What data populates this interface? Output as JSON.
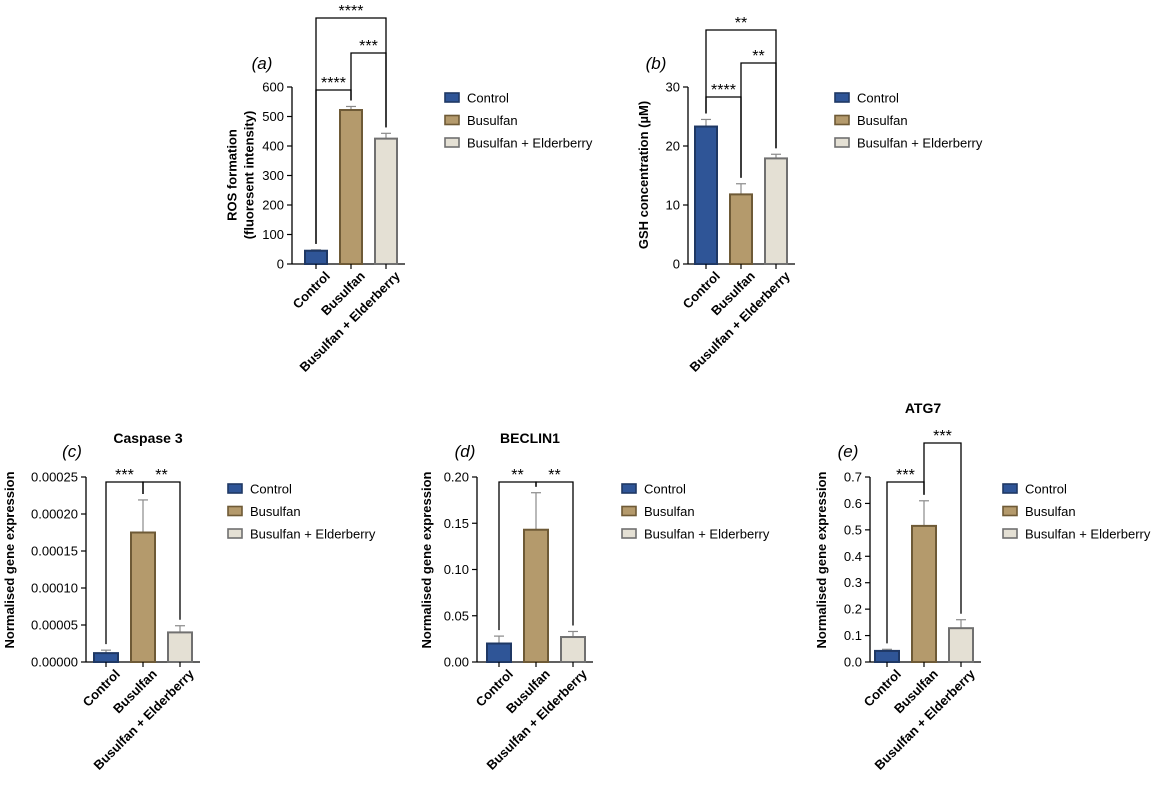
{
  "colors": {
    "control_fill": "#2F5597",
    "control_stroke": "#1F3864",
    "busulfan_fill": "#B49A6C",
    "busulfan_stroke": "#6E5A36",
    "elder_fill": "#E4E0D4",
    "elder_stroke": "#707070",
    "axis": "#000000",
    "error_bar": "#8a8a8a"
  },
  "legend": {
    "items": [
      {
        "label": "Control",
        "series": "control"
      },
      {
        "label": "Busulfan",
        "series": "busulfan"
      },
      {
        "label": "Busulfan + Elderberry",
        "series": "elder"
      }
    ]
  },
  "chart_data": [
    {
      "id": "a",
      "panel_label": "(a)",
      "type": "bar",
      "title": "",
      "categories": [
        "Control",
        "Busulfan",
        "Busulfan + Elderberry"
      ],
      "values": [
        45,
        522,
        425
      ],
      "errors": [
        3,
        12,
        18
      ],
      "ylabel_lines": [
        "ROS formation",
        "(fluoresent intensity)"
      ],
      "ylim": [
        0,
        600
      ],
      "yticks": [
        0,
        100,
        200,
        300,
        400,
        500,
        600
      ],
      "ytick_labels": [
        "0",
        "100",
        "200",
        "300",
        "400",
        "500",
        "600"
      ],
      "significance": [
        {
          "from": 0,
          "to": 1,
          "label": "****"
        },
        {
          "from": 1,
          "to": 2,
          "label": "***"
        },
        {
          "from": 0,
          "to": 2,
          "label": "****"
        }
      ]
    },
    {
      "id": "b",
      "panel_label": "(b)",
      "type": "bar",
      "title": "",
      "categories": [
        "Control",
        "Busulfan",
        "Busulfan + Elderberry"
      ],
      "values": [
        23.3,
        11.8,
        17.9
      ],
      "errors": [
        1.2,
        1.8,
        0.7
      ],
      "ylabel_lines": [
        "GSH concentration (µM)"
      ],
      "ylim": [
        0,
        30
      ],
      "yticks": [
        0,
        10,
        20,
        30
      ],
      "ytick_labels": [
        "0",
        "10",
        "20",
        "30"
      ],
      "significance": [
        {
          "from": 0,
          "to": 1,
          "label": "****"
        },
        {
          "from": 1,
          "to": 2,
          "label": "**"
        },
        {
          "from": 0,
          "to": 2,
          "label": "**"
        }
      ]
    },
    {
      "id": "c",
      "panel_label": "(c)",
      "type": "bar",
      "title": "Caspase 3",
      "categories": [
        "Control",
        "Busulfan",
        "Busulfan + Elderberry"
      ],
      "values": [
        1.2e-05,
        0.000175,
        4e-05
      ],
      "errors": [
        4e-06,
        4.4e-05,
        9e-06
      ],
      "ylabel_lines": [
        "Normalised gene expression"
      ],
      "ylim": [
        0,
        0.00025
      ],
      "yticks": [
        0,
        5e-05,
        0.0001,
        0.00015,
        0.0002,
        0.00025
      ],
      "ytick_labels": [
        "0.00000",
        "0.00005",
        "0.00010",
        "0.00015",
        "0.00020",
        "0.00025"
      ],
      "significance": [
        {
          "from": 0,
          "to": 1,
          "label": "***"
        },
        {
          "from": 1,
          "to": 2,
          "label": "**"
        }
      ]
    },
    {
      "id": "d",
      "panel_label": "(d)",
      "type": "bar",
      "title": "BECLIN1",
      "categories": [
        "Control",
        "Busulfan",
        "Busulfan + Elderberry"
      ],
      "values": [
        0.02,
        0.143,
        0.027
      ],
      "errors": [
        0.008,
        0.04,
        0.006
      ],
      "ylabel_lines": [
        "Normalised gene expression"
      ],
      "ylim": [
        0,
        0.2
      ],
      "yticks": [
        0,
        0.05,
        0.1,
        0.15,
        0.2
      ],
      "ytick_labels": [
        "0.00",
        "0.05",
        "0.10",
        "0.15",
        "0.20"
      ],
      "significance": [
        {
          "from": 0,
          "to": 1,
          "label": "**"
        },
        {
          "from": 1,
          "to": 2,
          "label": "**"
        }
      ]
    },
    {
      "id": "e",
      "panel_label": "(e)",
      "type": "bar",
      "title": "ATG7",
      "categories": [
        "Control",
        "Busulfan",
        "Busulfan + Elderberry"
      ],
      "values": [
        0.042,
        0.515,
        0.128
      ],
      "errors": [
        0.006,
        0.095,
        0.032
      ],
      "ylabel_lines": [
        "Normalised gene expression"
      ],
      "ylim": [
        0,
        0.7
      ],
      "yticks": [
        0,
        0.1,
        0.2,
        0.3,
        0.4,
        0.5,
        0.6,
        0.7
      ],
      "ytick_labels": [
        "0.0",
        "0.1",
        "0.2",
        "0.3",
        "0.4",
        "0.5",
        "0.6",
        "0.7"
      ],
      "significance": [
        {
          "from": 0,
          "to": 1,
          "label": "***"
        },
        {
          "from": 1,
          "to": 2,
          "label": "***"
        }
      ]
    }
  ]
}
